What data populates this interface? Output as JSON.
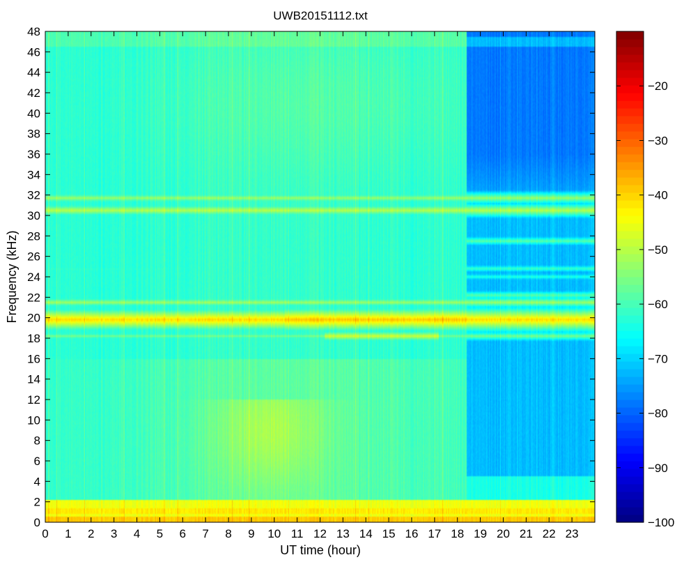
{
  "chart_data": {
    "type": "heatmap",
    "title": "UWB20151112.txt",
    "xlabel": "UT time (hour)",
    "ylabel": "Frequency (kHz)",
    "xlim": [
      0,
      24
    ],
    "ylim": [
      0,
      48
    ],
    "x_ticks": [
      0,
      1,
      2,
      3,
      4,
      5,
      6,
      7,
      8,
      9,
      10,
      11,
      12,
      13,
      14,
      15,
      16,
      17,
      18,
      19,
      20,
      21,
      22,
      23
    ],
    "y_ticks": [
      0,
      2,
      4,
      6,
      8,
      10,
      12,
      14,
      16,
      18,
      20,
      22,
      24,
      26,
      28,
      30,
      32,
      34,
      36,
      38,
      40,
      42,
      44,
      46,
      48
    ],
    "colorbar": {
      "colormap": "jet",
      "range": [
        -100,
        -10
      ],
      "ticks": [
        -100,
        -90,
        -80,
        -70,
        -60,
        -50,
        -40,
        -30,
        -20
      ]
    },
    "grid": false,
    "approx_levels": {
      "background_before_18h4": -63,
      "background_after_18h4": -78,
      "low_freq_0_2kHz": -45,
      "band_20kHz": -40,
      "band_18kHz_12_to_17h": -48,
      "band_30_32kHz": -50,
      "band_21_5kHz": -52,
      "low_freq_broadband_2_12kHz_8_to_11h": -52
    },
    "regime_change_hour": 18.4
  }
}
